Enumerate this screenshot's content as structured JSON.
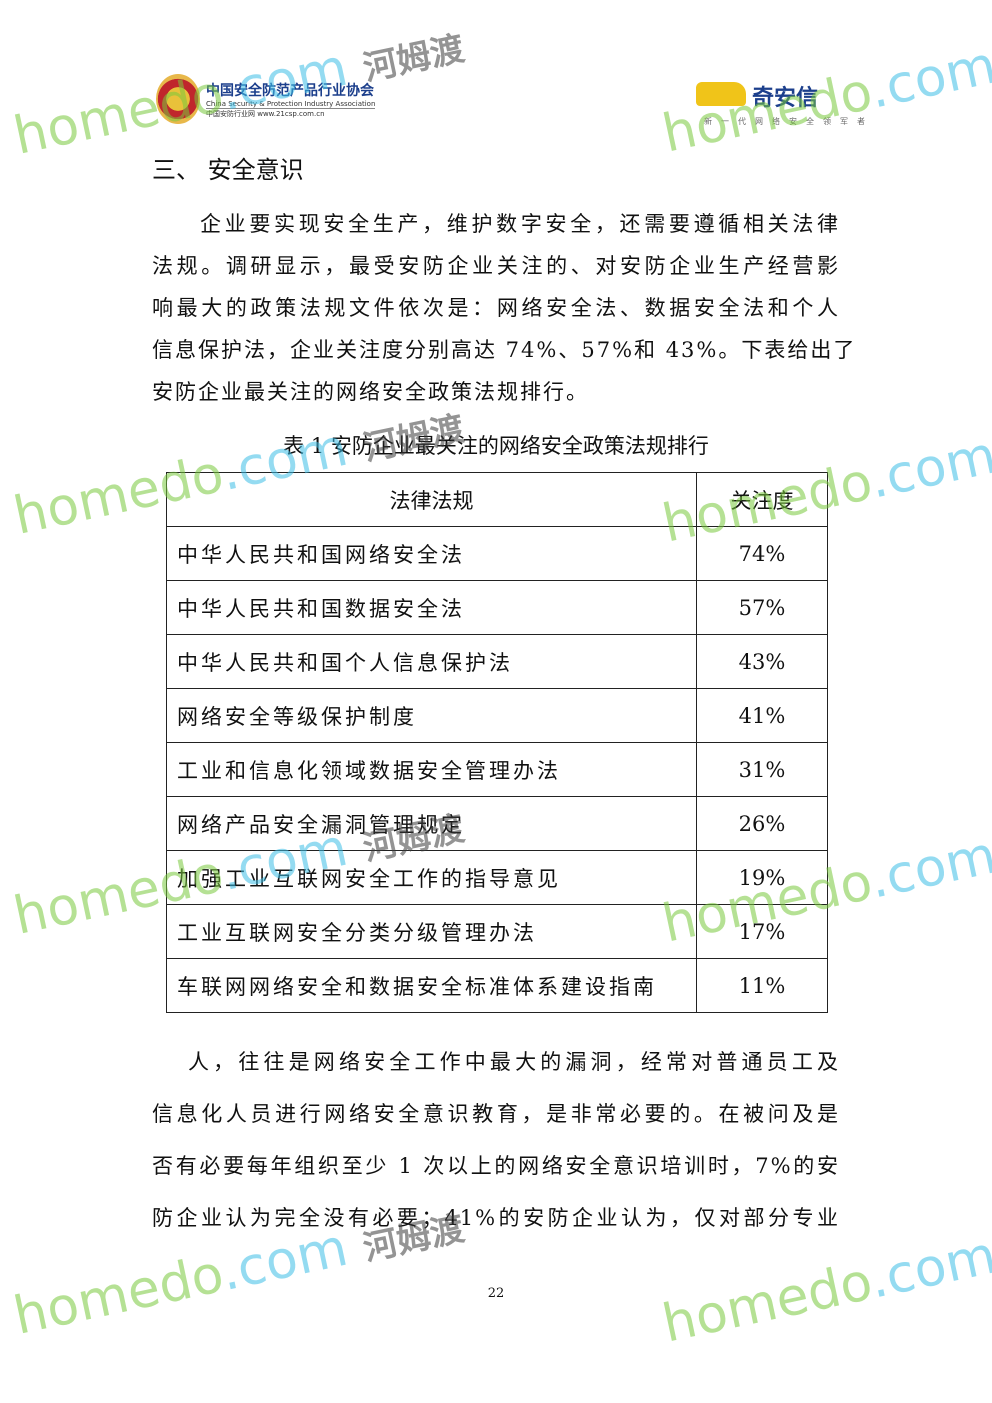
{
  "header": {
    "left_logo_cn": "中国安全防范产品行业协会",
    "left_logo_en": "China Security & Protection Industry Association",
    "left_logo_url": "中国安防行业网 www.21csp.com.cn",
    "right_logo_name": "奇安信",
    "right_logo_slogan": "新一代网络安全领军者"
  },
  "section_title": "三、 安全意识",
  "para1": [
    "企业要实现安全生产，维护数字安全，还需要遵循相关法律",
    "法规。调研显示，最受安防企业关注的、对安防企业生产经营影",
    "响最大的政策法规文件依次是：网络安全法、数据安全法和个人",
    "信息保护法，企业关注度分别高达 74%、57%和 43%。下表给出了",
    "安防企业最关注的网络安全政策法规排行。"
  ],
  "table": {
    "caption": "表 1  安防企业最关注的网络安全政策法规排行",
    "headers": [
      "法律法规",
      "关注度"
    ],
    "rows": [
      [
        "中华人民共和国网络安全法",
        "74%"
      ],
      [
        "中华人民共和国数据安全法",
        "57%"
      ],
      [
        "中华人民共和国个人信息保护法",
        "43%"
      ],
      [
        "网络安全等级保护制度",
        "41%"
      ],
      [
        "工业和信息化领域数据安全管理办法",
        "31%"
      ],
      [
        "网络产品安全漏洞管理规定",
        "26%"
      ],
      [
        "加强工业互联网安全工作的指导意见",
        "19%"
      ],
      [
        "工业互联网安全分类分级管理办法",
        "17%"
      ],
      [
        "车联网网络安全和数据安全标准体系建设指南",
        "11%"
      ]
    ]
  },
  "para2": [
    "人，往往是网络安全工作中最大的漏洞，经常对普通员工及",
    "信息化人员进行网络安全意识教育，是非常必要的。在被问及是",
    "否有必要每年组织至少 1 次以上的网络安全意识培训时，7%的安",
    "防企业认为完全没有必要；41%的安防企业认为，仅对部分专业"
  ],
  "page_number": "22",
  "watermark": "homedo.com 河姆渡"
}
